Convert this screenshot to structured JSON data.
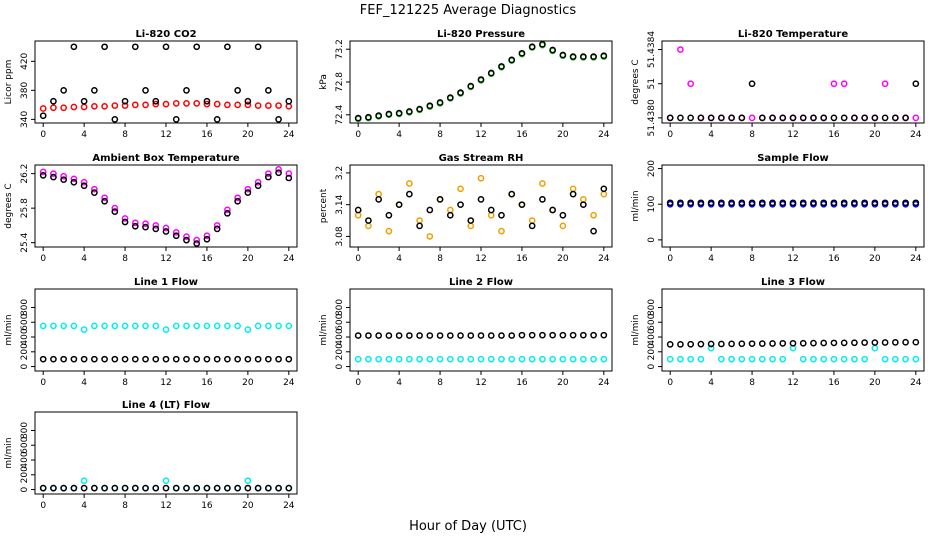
{
  "title": "FEF_121225  Average Diagnostics",
  "xlabel": "Hour of Day (UTC)",
  "chart_data": [
    {
      "type": "scatter",
      "title": "Li-820 CO2",
      "ylabel": "Licor ppm",
      "xlim": [
        -0.8,
        24.8
      ],
      "xticks": [
        0,
        4,
        8,
        12,
        16,
        20,
        24
      ],
      "ylim": [
        335,
        448
      ],
      "yticks": [
        340,
        380,
        420
      ],
      "x": [
        0,
        1,
        2,
        3,
        4,
        5,
        6,
        7,
        8,
        9,
        10,
        11,
        12,
        13,
        14,
        15,
        16,
        17,
        18,
        19,
        20,
        21,
        22,
        23,
        24
      ],
      "series": [
        {
          "color": "#ff0000",
          "values": [
            355,
            356,
            356,
            357,
            357,
            358,
            358,
            359,
            359,
            360,
            360,
            361,
            361,
            362,
            362,
            362,
            361,
            361,
            360,
            360,
            360,
            359,
            359,
            359,
            358
          ]
        },
        {
          "color": "#000000",
          "values": [
            345,
            365,
            380,
            440,
            365,
            380,
            440,
            340,
            365,
            440,
            380,
            365,
            440,
            340,
            380,
            440,
            365,
            340,
            440,
            380,
            365,
            440,
            380,
            340,
            365
          ]
        }
      ]
    },
    {
      "type": "scatter",
      "title": "Li-820 Pressure",
      "ylabel": "kPa",
      "xlim": [
        -0.8,
        24.8
      ],
      "xticks": [
        0,
        4,
        8,
        12,
        16,
        20,
        24
      ],
      "ylim": [
        72.3,
        73.3
      ],
      "yticks": [
        72.4,
        72.8,
        73.2
      ],
      "x": [
        0,
        1,
        2,
        3,
        4,
        5,
        6,
        7,
        8,
        9,
        10,
        11,
        12,
        13,
        14,
        15,
        16,
        17,
        18,
        19,
        20,
        21,
        22,
        23,
        24
      ],
      "series": [
        {
          "color": "#22cc22",
          "values": [
            72.35,
            72.36,
            72.38,
            72.4,
            72.41,
            72.43,
            72.46,
            72.5,
            72.54,
            72.6,
            72.66,
            72.74,
            72.82,
            72.9,
            72.98,
            73.06,
            73.14,
            73.22,
            73.25,
            73.18,
            73.12,
            73.1,
            73.1,
            73.1,
            73.11
          ]
        },
        {
          "color": "#000000",
          "values": [
            72.36,
            72.37,
            72.39,
            72.41,
            72.42,
            72.44,
            72.47,
            72.51,
            72.55,
            72.61,
            72.67,
            72.75,
            72.83,
            72.91,
            72.99,
            73.07,
            73.15,
            73.23,
            73.26,
            73.19,
            73.13,
            73.11,
            73.11,
            73.11,
            73.12
          ]
        }
      ]
    },
    {
      "type": "scatter",
      "title": "Li-820 Temperature",
      "ylabel": "degrees C",
      "xlim": [
        -0.8,
        24.8
      ],
      "xticks": [
        0,
        4,
        8,
        12,
        16,
        20,
        24
      ],
      "ylim": [
        51.43797,
        51.43845
      ],
      "yticks": [
        {
          "value": 51.438,
          "label": "51.4380"
        },
        {
          "value": 51.4382,
          "label": "51"
        },
        51.4384
      ],
      "x": [
        0,
        1,
        2,
        3,
        4,
        5,
        6,
        7,
        8,
        9,
        10,
        11,
        12,
        13,
        14,
        15,
        16,
        17,
        18,
        19,
        20,
        21,
        22,
        23,
        24
      ],
      "series": [
        {
          "color": "#ff00ff",
          "values": [
            51.438,
            51.4384,
            51.4382,
            51.438,
            51.438,
            51.438,
            51.438,
            51.438,
            51.438,
            51.438,
            51.438,
            51.438,
            51.438,
            51.438,
            51.438,
            51.438,
            51.4382,
            51.4382,
            51.438,
            51.438,
            51.438,
            51.4382,
            51.438,
            51.438,
            51.438
          ]
        },
        {
          "color": "#000000",
          "values": [
            51.438,
            51.438,
            51.438,
            51.438,
            51.438,
            51.438,
            51.438,
            51.438,
            51.4382,
            51.438,
            51.438,
            51.438,
            51.438,
            51.438,
            51.438,
            51.438,
            51.438,
            51.438,
            51.438,
            51.438,
            51.438,
            51.438,
            51.438,
            51.438,
            51.4382
          ]
        }
      ]
    },
    {
      "type": "scatter",
      "title": "Ambient Box Temperature",
      "ylabel": "degrees C",
      "xlim": [
        -0.8,
        24.8
      ],
      "xticks": [
        0,
        4,
        8,
        12,
        16,
        20,
        24
      ],
      "ylim": [
        25.35,
        26.3
      ],
      "yticks": [
        25.4,
        25.8,
        26.2
      ],
      "x": [
        0,
        1,
        2,
        3,
        4,
        5,
        6,
        7,
        8,
        9,
        10,
        11,
        12,
        13,
        14,
        15,
        16,
        17,
        18,
        19,
        20,
        21,
        22,
        23,
        24
      ],
      "series": [
        {
          "color": "#ff00ff",
          "values": [
            26.22,
            26.2,
            26.17,
            26.14,
            26.1,
            26.02,
            25.92,
            25.8,
            25.68,
            25.63,
            25.62,
            25.6,
            25.57,
            25.52,
            25.47,
            25.43,
            25.48,
            25.6,
            25.78,
            25.92,
            26.02,
            26.1,
            26.2,
            26.25,
            26.2
          ]
        },
        {
          "color": "#000000",
          "values": [
            26.18,
            26.16,
            26.13,
            26.1,
            26.06,
            25.98,
            25.88,
            25.76,
            25.64,
            25.59,
            25.58,
            25.56,
            25.53,
            25.48,
            25.43,
            25.39,
            25.44,
            25.56,
            25.74,
            25.88,
            25.98,
            26.06,
            26.16,
            26.21,
            26.15
          ]
        }
      ]
    },
    {
      "type": "scatter",
      "title": "Gas Stream RH",
      "ylabel": "percent",
      "xlim": [
        -0.8,
        24.8
      ],
      "xticks": [
        0,
        4,
        8,
        12,
        16,
        20,
        24
      ],
      "ylim": [
        3.06,
        3.215
      ],
      "yticks": [
        3.08,
        3.14,
        3.2
      ],
      "x": [
        0,
        1,
        2,
        3,
        4,
        5,
        6,
        7,
        8,
        9,
        10,
        11,
        12,
        13,
        14,
        15,
        16,
        17,
        18,
        19,
        20,
        21,
        22,
        23,
        24
      ],
      "series": [
        {
          "color": "#f0a000",
          "values": [
            3.12,
            3.1,
            3.16,
            3.09,
            3.14,
            3.18,
            3.11,
            3.08,
            3.15,
            3.13,
            3.17,
            3.1,
            3.19,
            3.12,
            3.09,
            3.16,
            3.14,
            3.11,
            3.18,
            3.13,
            3.1,
            3.17,
            3.15,
            3.12,
            3.16
          ]
        },
        {
          "color": "#000000",
          "values": [
            3.13,
            3.11,
            3.15,
            3.12,
            3.14,
            3.16,
            3.1,
            3.13,
            3.15,
            3.12,
            3.14,
            3.11,
            3.15,
            3.13,
            3.12,
            3.16,
            3.14,
            3.1,
            3.15,
            3.13,
            3.12,
            3.16,
            3.14,
            3.09,
            3.17
          ]
        }
      ]
    },
    {
      "type": "scatter",
      "title": "Sample Flow",
      "ylabel": "ml/min",
      "xlim": [
        -0.8,
        24.8
      ],
      "xticks": [
        0,
        4,
        8,
        12,
        16,
        20,
        24
      ],
      "ylim": [
        -20,
        210
      ],
      "yticks": [
        0,
        100,
        200
      ],
      "x": [
        0,
        1,
        2,
        3,
        4,
        5,
        6,
        7,
        8,
        9,
        10,
        11,
        12,
        13,
        14,
        15,
        16,
        17,
        18,
        19,
        20,
        21,
        22,
        23,
        24
      ],
      "series": [
        {
          "color": "#0000ff",
          "values": [
            100,
            100,
            100,
            100,
            100,
            100,
            100,
            100,
            100,
            100,
            100,
            100,
            100,
            100,
            100,
            100,
            100,
            100,
            100,
            100,
            100,
            100,
            100,
            100,
            100
          ]
        },
        {
          "color": "#000000",
          "values": [
            104,
            104,
            104,
            104,
            104,
            104,
            104,
            104,
            104,
            104,
            104,
            104,
            104,
            104,
            104,
            104,
            104,
            104,
            104,
            104,
            104,
            104,
            104,
            104,
            104
          ]
        }
      ]
    },
    {
      "type": "scatter",
      "title": "Line 1 Flow",
      "ylabel": "ml/min",
      "xlim": [
        -0.8,
        24.8
      ],
      "xticks": [
        0,
        4,
        8,
        12,
        16,
        20,
        24
      ],
      "ylim": [
        -60,
        1050
      ],
      "yticks": [
        0,
        200,
        400,
        600,
        800
      ],
      "x": [
        0,
        1,
        2,
        3,
        4,
        5,
        6,
        7,
        8,
        9,
        10,
        11,
        12,
        13,
        14,
        15,
        16,
        17,
        18,
        19,
        20,
        21,
        22,
        23,
        24
      ],
      "series": [
        {
          "color": "#00eeee",
          "values": [
            550,
            550,
            550,
            550,
            500,
            550,
            550,
            550,
            550,
            550,
            550,
            550,
            500,
            550,
            550,
            550,
            550,
            550,
            550,
            550,
            500,
            550,
            550,
            550,
            550
          ]
        },
        {
          "color": "#000000",
          "values": [
            100,
            100,
            100,
            100,
            100,
            100,
            100,
            100,
            100,
            100,
            100,
            100,
            100,
            100,
            100,
            100,
            100,
            100,
            100,
            100,
            100,
            100,
            100,
            100,
            100
          ]
        }
      ]
    },
    {
      "type": "scatter",
      "title": "Line 2 Flow",
      "ylabel": "ml/min",
      "xlim": [
        -0.8,
        24.8
      ],
      "xticks": [
        0,
        4,
        8,
        12,
        16,
        20,
        24
      ],
      "ylim": [
        -60,
        1050
      ],
      "yticks": [
        0,
        200,
        400,
        600,
        800
      ],
      "x": [
        0,
        1,
        2,
        3,
        4,
        5,
        6,
        7,
        8,
        9,
        10,
        11,
        12,
        13,
        14,
        15,
        16,
        17,
        18,
        19,
        20,
        21,
        22,
        23,
        24
      ],
      "series": [
        {
          "color": "#00eeee",
          "values": [
            100,
            100,
            100,
            100,
            100,
            100,
            100,
            100,
            100,
            100,
            100,
            100,
            100,
            100,
            100,
            100,
            100,
            100,
            100,
            100,
            100,
            100,
            100,
            100,
            100
          ]
        },
        {
          "color": "#000000",
          "values": [
            420,
            420,
            420,
            420,
            420,
            420,
            420,
            420,
            420,
            420,
            420,
            420,
            420,
            420,
            420,
            420,
            425,
            425,
            425,
            425,
            425,
            425,
            425,
            425,
            425
          ]
        }
      ]
    },
    {
      "type": "scatter",
      "title": "Line 3 Flow",
      "ylabel": "ml/min",
      "xlim": [
        -0.8,
        24.8
      ],
      "xticks": [
        0,
        4,
        8,
        12,
        16,
        20,
        24
      ],
      "ylim": [
        -60,
        1050
      ],
      "yticks": [
        0,
        200,
        400,
        600,
        800
      ],
      "x": [
        0,
        1,
        2,
        3,
        4,
        5,
        6,
        7,
        8,
        9,
        10,
        11,
        12,
        13,
        14,
        15,
        16,
        17,
        18,
        19,
        20,
        21,
        22,
        23,
        24
      ],
      "series": [
        {
          "color": "#00eeee",
          "values": [
            100,
            100,
            100,
            100,
            250,
            100,
            100,
            100,
            100,
            100,
            100,
            100,
            250,
            100,
            100,
            100,
            100,
            100,
            100,
            100,
            250,
            100,
            100,
            100,
            100
          ]
        },
        {
          "color": "#000000",
          "values": [
            300,
            301,
            302,
            304,
            305,
            306,
            307,
            309,
            310,
            311,
            312,
            314,
            315,
            316,
            317,
            319,
            320,
            321,
            322,
            324,
            325,
            326,
            327,
            329,
            330
          ]
        }
      ]
    },
    {
      "type": "scatter",
      "title": "Line 4 (LT) Flow",
      "ylabel": "ml/min",
      "xlim": [
        -0.8,
        24.8
      ],
      "xticks": [
        0,
        4,
        8,
        12,
        16,
        20,
        24
      ],
      "ylim": [
        -60,
        1050
      ],
      "yticks": [
        0,
        200,
        400,
        600,
        800
      ],
      "x": [
        0,
        1,
        2,
        3,
        4,
        5,
        6,
        7,
        8,
        9,
        10,
        11,
        12,
        13,
        14,
        15,
        16,
        17,
        18,
        19,
        20,
        21,
        22,
        23,
        24
      ],
      "series": [
        {
          "color": "#00eeee",
          "values": [
            20,
            20,
            20,
            20,
            120,
            20,
            20,
            20,
            20,
            20,
            20,
            20,
            120,
            20,
            20,
            20,
            20,
            20,
            20,
            20,
            120,
            20,
            20,
            20,
            20
          ]
        },
        {
          "color": "#000000",
          "values": [
            20,
            20,
            20,
            20,
            20,
            20,
            20,
            20,
            20,
            20,
            20,
            20,
            20,
            20,
            20,
            20,
            20,
            20,
            20,
            20,
            20,
            20,
            20,
            20,
            20
          ]
        }
      ]
    }
  ]
}
